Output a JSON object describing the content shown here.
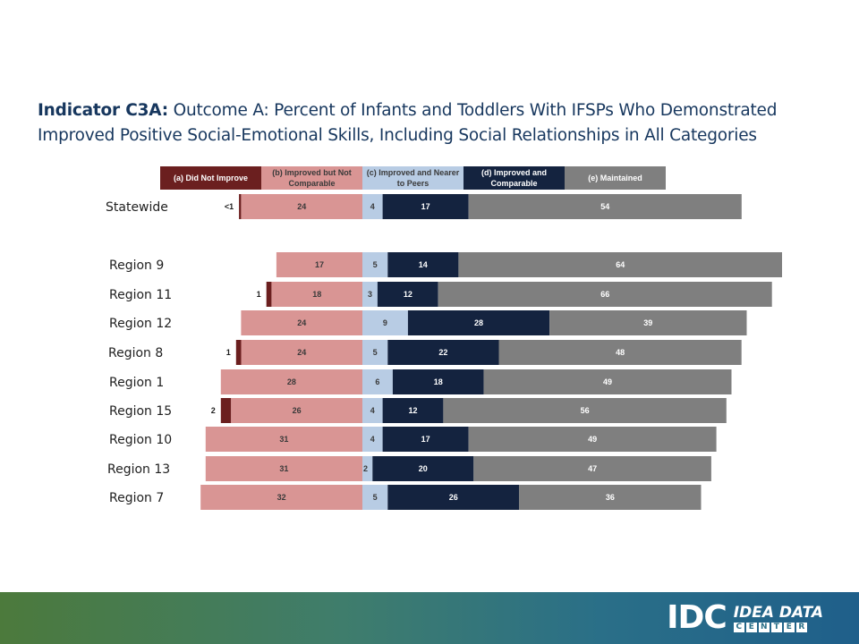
{
  "title": {
    "bold": "Indicator C3A:",
    "rest": " Outcome A: Percent of Infants and Toddlers With IFSPs Who Demonstrated Improved Positive Social-Emotional Skills, Including Social Relationships in All Categories"
  },
  "colors": {
    "a": "#6b1f1f",
    "b": "#d99594",
    "c": "#b8cce4",
    "d": "#14233f",
    "e": "#7f7f7f"
  },
  "chart_data": {
    "type": "bar",
    "orientation": "horizontal-stacked-diverging",
    "series": [
      {
        "name": "(a) Did Not Improve",
        "key": "a"
      },
      {
        "name": "(b) Improved but Not Comparable",
        "key": "b"
      },
      {
        "name": "(c) Improved and Nearer to Peers",
        "key": "c"
      },
      {
        "name": "(d) Improved and Comparable",
        "key": "d"
      },
      {
        "name": "(e) Maintained",
        "key": "e"
      }
    ],
    "rows": [
      {
        "label": "Statewide",
        "a": 0.4,
        "b": 24,
        "c": 4,
        "d": 17,
        "e": 54,
        "labels": {
          "a": "<1",
          "b": "24",
          "c": "4",
          "d": "17",
          "e": "54"
        }
      },
      {
        "label": "Region 9",
        "a": 0,
        "b": 17,
        "c": 5,
        "d": 14,
        "e": 64,
        "labels": {
          "a": "",
          "b": "17",
          "c": "5",
          "d": "14",
          "e": "64"
        }
      },
      {
        "label": "Region 11",
        "a": 1,
        "b": 18,
        "c": 3,
        "d": 12,
        "e": 66,
        "labels": {
          "a": "1",
          "b": "18",
          "c": "3",
          "d": "12",
          "e": "66"
        }
      },
      {
        "label": "Region 12",
        "a": 0,
        "b": 24,
        "c": 9,
        "d": 28,
        "e": 39,
        "labels": {
          "a": "",
          "b": "24",
          "c": "9",
          "d": "28",
          "e": "39"
        }
      },
      {
        "label": "Region 8",
        "a": 1,
        "b": 24,
        "c": 5,
        "d": 22,
        "e": 48,
        "labels": {
          "a": "1",
          "b": "24",
          "c": "5",
          "d": "22",
          "e": "48"
        }
      },
      {
        "label": "Region 1",
        "a": 0,
        "b": 28,
        "c": 6,
        "d": 18,
        "e": 49,
        "labels": {
          "a": "",
          "b": "28",
          "c": "6",
          "d": "18",
          "e": "49"
        }
      },
      {
        "label": "Region 15",
        "a": 2,
        "b": 26,
        "c": 4,
        "d": 12,
        "e": 56,
        "labels": {
          "a": "2",
          "b": "26",
          "c": "4",
          "d": "12",
          "e": "56"
        }
      },
      {
        "label": "Region 10",
        "a": 0,
        "b": 31,
        "c": 4,
        "d": 17,
        "e": 49,
        "labels": {
          "a": "",
          "b": "31",
          "c": "4",
          "d": "17",
          "e": "49"
        }
      },
      {
        "label": "Region 13",
        "a": 0,
        "b": 31,
        "c": 2,
        "d": 20,
        "e": 47,
        "labels": {
          "a": "",
          "b": "31",
          "c": "2",
          "d": "20",
          "e": "47"
        }
      },
      {
        "label": "Region 7",
        "a": 0,
        "b": 32,
        "c": 5,
        "d": 26,
        "e": 36,
        "labels": {
          "a": "",
          "b": "32",
          "c": "5",
          "d": "26",
          "e": "36"
        }
      }
    ],
    "legend_position": "top",
    "grid": false
  },
  "logo": {
    "idc": "IDC",
    "name": "IDEA DATA",
    "center_letters": [
      "C",
      "E",
      "N",
      "T",
      "E",
      "R"
    ]
  }
}
